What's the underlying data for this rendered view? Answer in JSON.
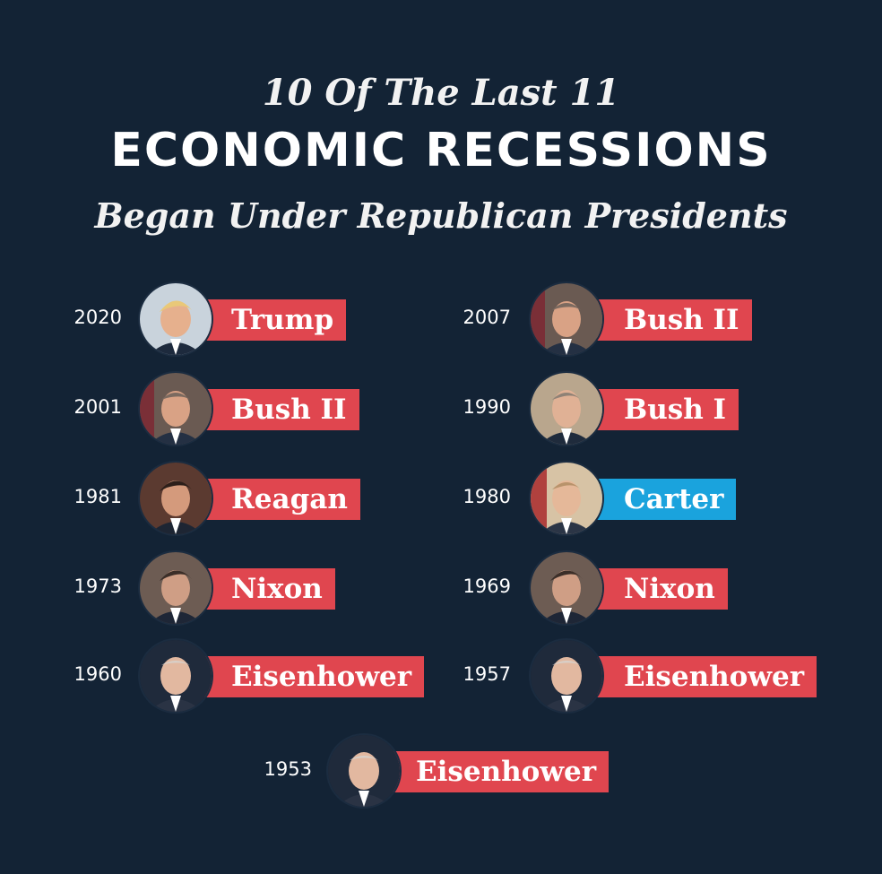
{
  "title": {
    "line1": "10 Of The Last 11",
    "line2": "ECONOMIC RECESSIONS",
    "line3": "Began Under Republican Presidents"
  },
  "recessions": [
    {
      "year": "2020",
      "president": "Trump",
      "party_color": "#e0464f"
    },
    {
      "year": "2007",
      "president": "Bush II",
      "party_color": "#e0464f"
    },
    {
      "year": "2001",
      "president": "Bush II",
      "party_color": "#e0464f"
    },
    {
      "year": "1990",
      "president": "Bush I",
      "party_color": "#e0464f"
    },
    {
      "year": "1981",
      "president": "Reagan",
      "party_color": "#e0464f"
    },
    {
      "year": "1980",
      "president": "Carter",
      "party_color": "#1aa3dd"
    },
    {
      "year": "1973",
      "president": "Nixon",
      "party_color": "#e0464f"
    },
    {
      "year": "1969",
      "president": "Nixon",
      "party_color": "#e0464f"
    },
    {
      "year": "1960",
      "president": "Eisenhower",
      "party_color": "#e0464f"
    },
    {
      "year": "1957",
      "president": "Eisenhower",
      "party_color": "#e0464f"
    },
    {
      "year": "1953",
      "president": "Eisenhower",
      "party_color": "#e0464f"
    }
  ],
  "colors": {
    "background": "#132335",
    "republican": "#e0464f",
    "democrat": "#1aa3dd"
  }
}
